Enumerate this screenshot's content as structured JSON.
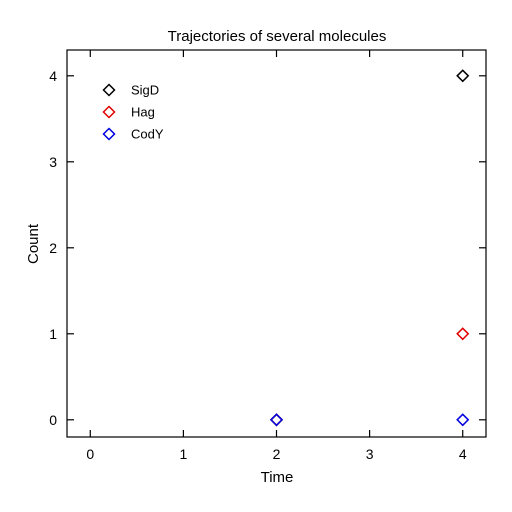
{
  "chart_data": {
    "type": "scatter",
    "title": "Trajectories of several molecules",
    "xlabel": "Time",
    "ylabel": "Count",
    "xlim": [
      -0.25,
      4.25
    ],
    "ylim": [
      -0.2,
      4.3
    ],
    "xticks": [
      0,
      1,
      2,
      3,
      4
    ],
    "yticks": [
      0,
      1,
      2,
      3,
      4
    ],
    "grid": false,
    "legend_position": "top-left",
    "marker": "diamond-open",
    "series": [
      {
        "name": "SigD",
        "color": "#000000",
        "x": [
          2,
          4
        ],
        "y": [
          0,
          4
        ]
      },
      {
        "name": "Hag",
        "color": "#e00000",
        "x": [
          2,
          4
        ],
        "y": [
          0,
          1
        ]
      },
      {
        "name": "CodY",
        "color": "#0000e0",
        "x": [
          2,
          4
        ],
        "y": [
          0,
          0
        ]
      }
    ]
  }
}
